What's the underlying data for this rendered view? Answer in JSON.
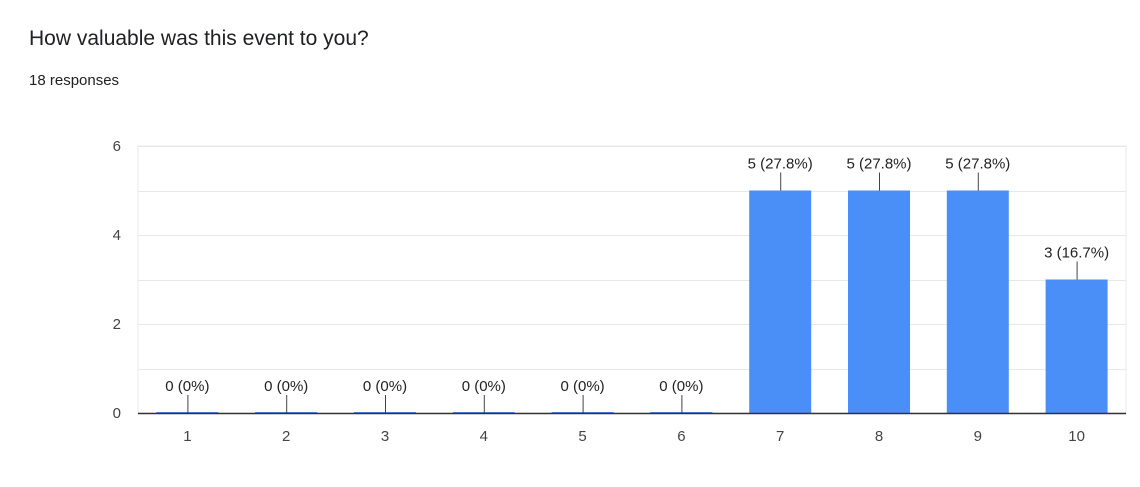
{
  "question": "How valuable was this event to you?",
  "responses_text": "18 responses",
  "colors": {
    "bar": "#4a8ff7",
    "grid": "#e8e8e8",
    "axis": "#333333"
  },
  "chart_data": {
    "type": "bar",
    "categories": [
      "1",
      "2",
      "3",
      "4",
      "5",
      "6",
      "7",
      "8",
      "9",
      "10"
    ],
    "values": [
      0,
      0,
      0,
      0,
      0,
      0,
      5,
      5,
      5,
      3
    ],
    "data_labels": [
      "0 (0%)",
      "0 (0%)",
      "0 (0%)",
      "0 (0%)",
      "0 (0%)",
      "0 (0%)",
      "5 (27.8%)",
      "5 (27.8%)",
      "5 (27.8%)",
      "3 (16.7%)"
    ],
    "yticks": [
      0,
      2,
      4,
      6
    ],
    "ylim": [
      0,
      6
    ],
    "grid": true
  }
}
